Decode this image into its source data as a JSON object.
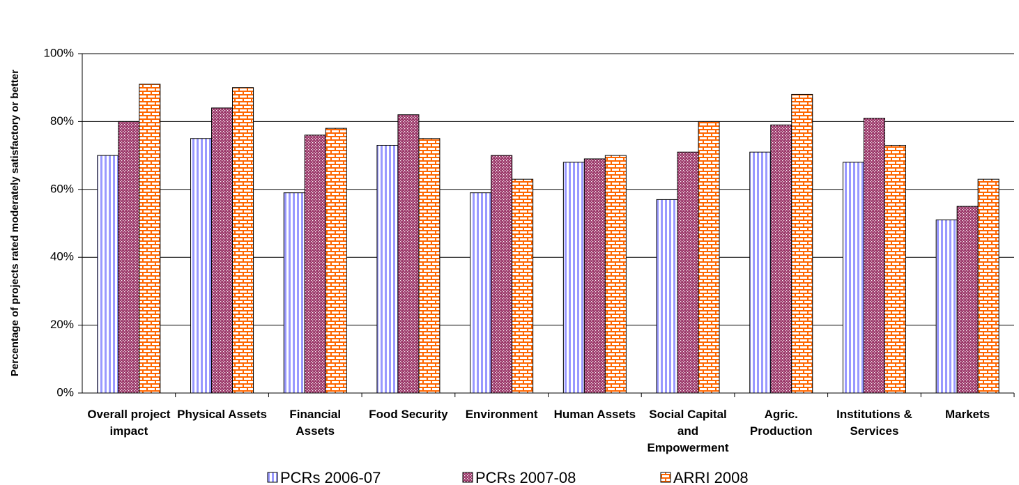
{
  "chart_data": {
    "type": "bar",
    "y_label": "Percentage of projects rated moderately satisfactory or better",
    "categories": [
      "Overall project impact",
      "Physical Assets",
      "Financial Assets",
      "Food Security",
      "Environment",
      "Human Assets",
      "Social Capital and Empowerment",
      "Agric. Production",
      "Institutions & Services",
      "Markets"
    ],
    "series": [
      {
        "name": "PCRs 2006-07",
        "color": "#9999ff",
        "values": [
          70,
          75,
          59,
          73,
          59,
          68,
          57,
          71,
          68,
          51
        ]
      },
      {
        "name": "PCRs 2007-08",
        "color": "#993366",
        "values": [
          80,
          84,
          76,
          82,
          70,
          69,
          71,
          79,
          81,
          55
        ]
      },
      {
        "name": "ARRI 2008",
        "color": "#ff6600",
        "values": [
          91,
          90,
          78,
          75,
          63,
          70,
          80,
          88,
          73,
          63
        ]
      }
    ],
    "ylim": [
      0,
      100
    ],
    "yticks": [
      {
        "value": 0,
        "label": "0%"
      },
      {
        "value": 20,
        "label": "20%"
      },
      {
        "value": 40,
        "label": "40%"
      },
      {
        "value": 60,
        "label": "60%"
      },
      {
        "value": 80,
        "label": "80%"
      },
      {
        "value": 100,
        "label": "100%"
      }
    ],
    "grid": true,
    "legend": "bottom"
  }
}
